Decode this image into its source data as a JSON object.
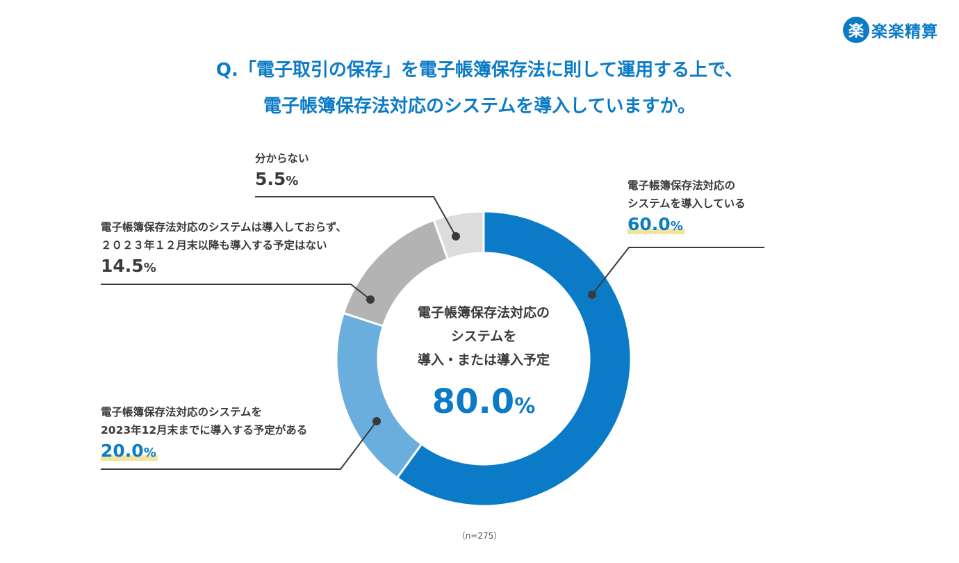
{
  "brand": {
    "mark": "楽",
    "name": "楽楽精算",
    "color": "#0b7bc8"
  },
  "title": {
    "line1": "Q.「電子取引の保存」を電子帳簿保存法に則して運用する上で、",
    "line2": "電子帳簿保存法対応のシステムを導入していますか。"
  },
  "center": {
    "line1": "電子帳簿保存法対応の",
    "line2": "システムを",
    "line3": "導入・または導入予定",
    "value": "80.0",
    "unit": "%"
  },
  "footnote": "（n=275）",
  "chart_data": {
    "type": "pie",
    "donut": true,
    "unit": "%",
    "slices": [
      {
        "label_lines": [
          "電子帳簿保存法対応の",
          "システムを導入している"
        ],
        "value": 60.0,
        "value_text": "60.0",
        "color": "#0b7bc8"
      },
      {
        "label_lines": [
          "電子帳簿保存法対応のシステムを",
          "2023年12月末までに導入する予定がある"
        ],
        "value": 20.0,
        "value_text": "20.0",
        "color": "#6aaedd"
      },
      {
        "label_lines": [
          "電子帳簿保存法対応のシステムは導入しておらず、",
          "２０２３年１２月末以降も導入する予定はない"
        ],
        "value": 14.5,
        "value_text": "14.5",
        "color": "#b3b3b3"
      },
      {
        "label_lines": [
          "分からない"
        ],
        "value": 5.5,
        "value_text": "5.5",
        "color": "#dcdcdc"
      }
    ]
  }
}
